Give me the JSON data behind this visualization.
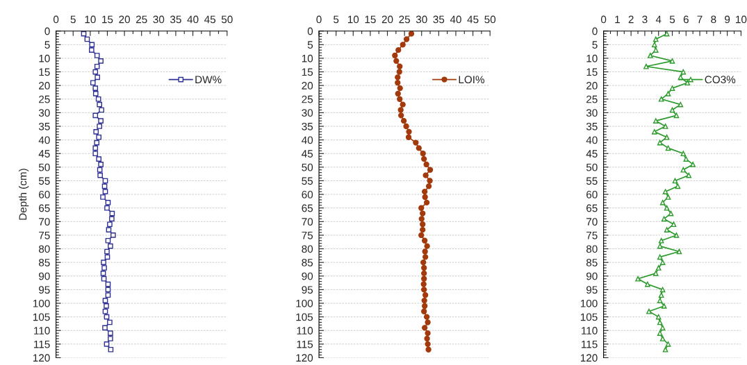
{
  "chart_data": [
    {
      "type": "line",
      "ylabel": "Depth (cm)",
      "orientation": "horizontal",
      "xlim": [
        0,
        50
      ],
      "xticks": [
        0,
        5,
        10,
        15,
        20,
        25,
        30,
        35,
        40,
        45,
        50
      ],
      "ylim": [
        120,
        0
      ],
      "yticks": [
        0,
        5,
        10,
        15,
        20,
        25,
        30,
        35,
        40,
        45,
        50,
        55,
        60,
        65,
        70,
        75,
        80,
        85,
        90,
        95,
        100,
        105,
        110,
        115,
        120
      ],
      "grid": "y",
      "legend": "top right",
      "marker": "square",
      "x": [
        1,
        3,
        5,
        7,
        9,
        11,
        13,
        15,
        17,
        19,
        21,
        23,
        25,
        27,
        29,
        31,
        33,
        35,
        37,
        39,
        41,
        43,
        45,
        47,
        49,
        51,
        53,
        55,
        57,
        59,
        61,
        63,
        65,
        67,
        69,
        71,
        73,
        75,
        77,
        79,
        81,
        83,
        85,
        87,
        89,
        91,
        93,
        95,
        97,
        99,
        101,
        103,
        105,
        107,
        109,
        111,
        113,
        115,
        117
      ],
      "series": [
        {
          "name": "DW%",
          "color": "#2e3192",
          "values": [
            8.1,
            9.1,
            10.5,
            10.4,
            12.0,
            13.1,
            12.0,
            11.5,
            12.1,
            10.8,
            11.5,
            11.6,
            12.4,
            12.7,
            13.3,
            11.5,
            13.1,
            12.7,
            11.7,
            12.5,
            11.9,
            11.5,
            11.5,
            12.5,
            13.1,
            12.8,
            12.9,
            14.4,
            14.2,
            14.4,
            13.7,
            15.2,
            14.9,
            16.4,
            16.3,
            15.7,
            15.4,
            16.7,
            15.2,
            15.9,
            14.9,
            15.0,
            13.9,
            14.1,
            13.8,
            14.0,
            15.2,
            15.2,
            15.2,
            14.4,
            14.7,
            14.4,
            14.8,
            15.7,
            14.3,
            15.9,
            15.9,
            14.8,
            16.0
          ]
        }
      ]
    },
    {
      "type": "line",
      "orientation": "horizontal",
      "xlim": [
        0,
        50
      ],
      "xticks": [
        0,
        5,
        10,
        15,
        20,
        25,
        30,
        35,
        40,
        45,
        50
      ],
      "ylim": [
        120,
        0
      ],
      "yticks": [
        0,
        5,
        10,
        15,
        20,
        25,
        30,
        35,
        40,
        45,
        50,
        55,
        60,
        65,
        70,
        75,
        80,
        85,
        90,
        95,
        100,
        105,
        110,
        115,
        120
      ],
      "grid": "y",
      "legend": "top right",
      "marker": "circle",
      "x": [
        1,
        3,
        5,
        7,
        9,
        11,
        13,
        15,
        17,
        19,
        21,
        23,
        25,
        27,
        29,
        31,
        33,
        35,
        37,
        39,
        41,
        43,
        45,
        47,
        49,
        51,
        53,
        55,
        57,
        59,
        61,
        63,
        65,
        67,
        69,
        71,
        73,
        75,
        77,
        79,
        81,
        83,
        85,
        87,
        89,
        91,
        93,
        95,
        97,
        99,
        101,
        103,
        105,
        107,
        109,
        111,
        113,
        115,
        117
      ],
      "series": [
        {
          "name": "LOI%",
          "color": "#a33a0c",
          "values": [
            27.0,
            25.6,
            24.5,
            23.2,
            22.2,
            22.6,
            23.6,
            23.5,
            23.0,
            23.0,
            23.7,
            23.1,
            23.6,
            24.5,
            23.9,
            24.0,
            24.8,
            25.5,
            26.3,
            26.2,
            28.3,
            29.2,
            30.4,
            30.7,
            31.4,
            32.5,
            31.2,
            32.4,
            32.1,
            30.9,
            31.0,
            31.5,
            29.9,
            30.3,
            30.0,
            30.3,
            30.3,
            29.9,
            30.9,
            31.6,
            31.0,
            31.1,
            30.5,
            30.7,
            30.7,
            30.7,
            30.6,
            30.7,
            31.1,
            30.8,
            30.9,
            30.7,
            31.5,
            31.8,
            30.9,
            31.8,
            31.6,
            31.8,
            32.0
          ]
        }
      ]
    },
    {
      "type": "line",
      "orientation": "horizontal",
      "xlim": [
        0,
        10
      ],
      "xticks": [
        0,
        1,
        2,
        3,
        4,
        5,
        6,
        7,
        8,
        9,
        10
      ],
      "ylim": [
        120,
        0
      ],
      "yticks": [
        0,
        5,
        10,
        15,
        20,
        25,
        30,
        35,
        40,
        45,
        50,
        55,
        60,
        65,
        70,
        75,
        80,
        85,
        90,
        95,
        100,
        105,
        110,
        115,
        120
      ],
      "grid": "y",
      "legend": "top right",
      "marker": "triangle",
      "x": [
        1,
        3,
        5,
        7,
        9,
        11,
        13,
        15,
        17,
        19,
        21,
        23,
        25,
        27,
        29,
        31,
        33,
        35,
        37,
        39,
        41,
        43,
        45,
        47,
        49,
        51,
        53,
        55,
        57,
        59,
        61,
        63,
        65,
        67,
        69,
        71,
        73,
        75,
        77,
        79,
        81,
        83,
        85,
        87,
        89,
        91,
        93,
        95,
        97,
        99,
        101,
        103,
        105,
        107,
        109,
        111,
        113,
        115,
        117
      ],
      "series": [
        {
          "name": "CO3%",
          "color": "#2a9a2a",
          "values": [
            4.6,
            3.8,
            3.7,
            3.8,
            3.4,
            5.0,
            3.1,
            5.8,
            5.6,
            6.1,
            5.0,
            4.7,
            4.2,
            5.6,
            5.0,
            5.3,
            3.8,
            4.5,
            3.7,
            4.6,
            4.1,
            4.7,
            5.8,
            6.0,
            6.5,
            5.8,
            6.2,
            5.2,
            5.4,
            4.5,
            4.7,
            4.3,
            4.6,
            4.9,
            4.4,
            5.1,
            4.6,
            5.3,
            4.2,
            4.1,
            5.5,
            4.1,
            4.3,
            4.0,
            3.8,
            2.5,
            3.2,
            4.3,
            4.2,
            4.1,
            4.4,
            3.3,
            4.0,
            4.1,
            4.3,
            4.1,
            4.3,
            4.7,
            4.5
          ]
        }
      ]
    }
  ]
}
